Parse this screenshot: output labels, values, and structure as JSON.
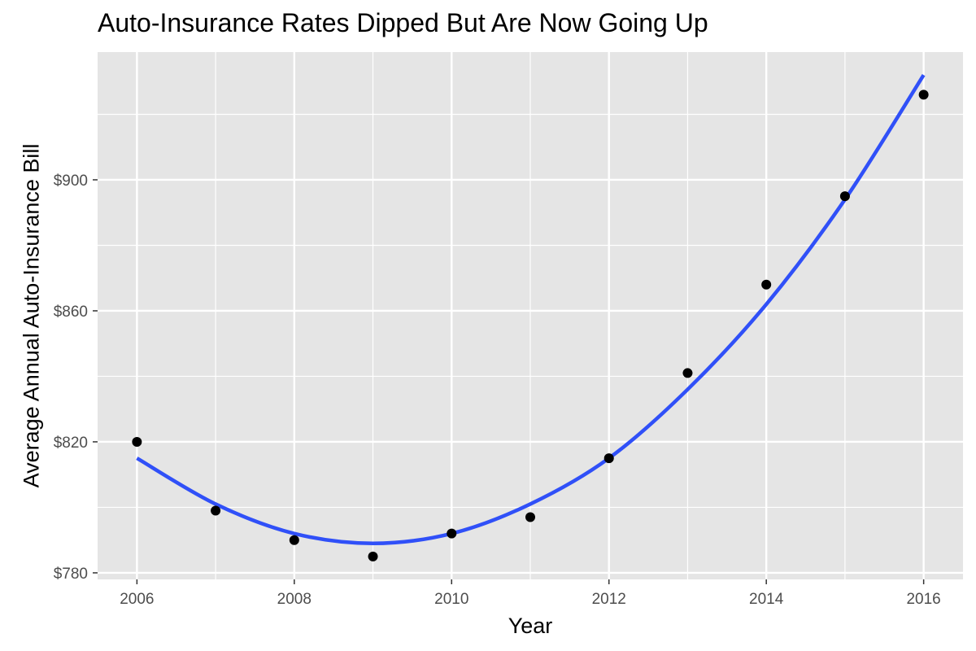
{
  "chart_data": {
    "type": "scatter",
    "title": "Auto-Insurance Rates Dipped But Are Now Going Up",
    "xlabel": "Year",
    "ylabel": "Average Annual Auto-Insurance Bill",
    "xlim": [
      2005.5,
      2016.5
    ],
    "ylim": [
      778,
      939
    ],
    "x_ticks": [
      2006,
      2008,
      2010,
      2012,
      2014,
      2016
    ],
    "y_ticks": [
      780,
      820,
      860,
      900
    ],
    "y_tick_labels": [
      "$780",
      "$820",
      "$860",
      "$900"
    ],
    "grid": true,
    "points": {
      "x": [
        2006,
        2007,
        2008,
        2009,
        2010,
        2011,
        2012,
        2013,
        2014,
        2015,
        2016
      ],
      "y": [
        820,
        799,
        790,
        785,
        792,
        797,
        815,
        841,
        868,
        895,
        926
      ]
    },
    "trend_line": {
      "type": "quadratic-fit",
      "x": [
        2006,
        2007,
        2008,
        2009,
        2010,
        2011,
        2012,
        2013,
        2014,
        2015,
        2016
      ],
      "y": [
        815,
        801,
        792,
        789,
        792,
        801,
        815,
        836,
        862,
        894,
        932
      ]
    },
    "colors": {
      "panel_background": "#e5e5e5",
      "grid": "#ffffff",
      "points": "#000000",
      "trend_line": "#3050f8"
    }
  }
}
